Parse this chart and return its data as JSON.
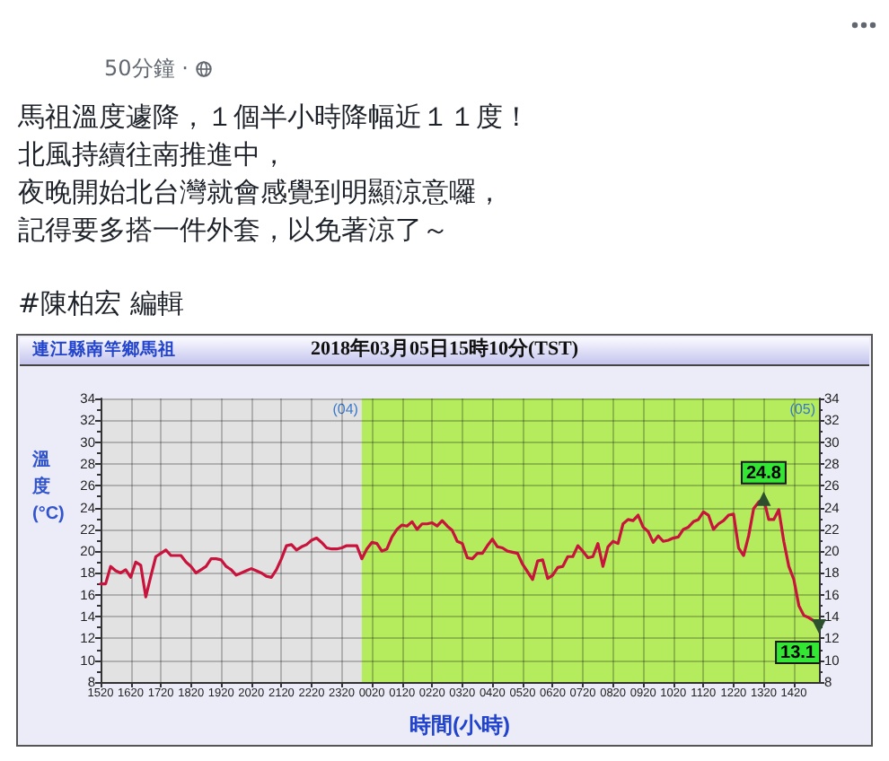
{
  "chart_data": {
    "type": "line",
    "title": "2018年03月05日15時10分(TST)",
    "subtitle": "連江縣南竿鄉馬祖",
    "xlabel": "時間(小時)",
    "ylabel": "溫度(°C)",
    "categories": [
      "1520",
      null,
      null,
      null,
      null,
      null,
      "1620",
      null,
      null,
      null,
      null,
      null,
      "1720",
      null,
      null,
      null,
      null,
      null,
      "1820",
      null,
      null,
      null,
      null,
      null,
      "1920",
      null,
      null,
      null,
      null,
      null,
      "2020",
      null,
      null,
      null,
      null,
      null,
      "2120",
      null,
      null,
      null,
      null,
      null,
      "2220",
      null,
      null,
      null,
      null,
      null,
      "2320",
      null,
      null,
      null,
      null,
      null,
      "0020",
      null,
      null,
      null,
      null,
      null,
      "0120",
      null,
      null,
      null,
      null,
      null,
      "0220",
      null,
      null,
      null,
      null,
      null,
      "0320",
      null,
      null,
      null,
      null,
      null,
      "0420",
      null,
      null,
      null,
      null,
      null,
      "0520",
      null,
      null,
      null,
      null,
      null,
      "0620",
      null,
      null,
      null,
      null,
      null,
      "0720",
      null,
      null,
      null,
      null,
      null,
      "0820",
      null,
      null,
      null,
      null,
      null,
      "0920",
      null,
      null,
      null,
      null,
      null,
      "1020",
      null,
      null,
      null,
      null,
      null,
      "1120",
      null,
      null,
      null,
      null,
      null,
      "1220",
      null,
      null,
      null,
      null,
      null,
      "1320",
      null,
      null,
      null,
      null,
      null,
      "1420",
      null,
      null,
      null,
      null,
      null
    ],
    "values": [
      17.0,
      17.0,
      18.6,
      18.2,
      18.0,
      18.3,
      17.6,
      19.0,
      18.7,
      15.8,
      17.7,
      19.5,
      19.8,
      20.1,
      19.6,
      19.6,
      19.6,
      19.0,
      18.6,
      18.0,
      18.3,
      18.6,
      19.3,
      19.3,
      19.2,
      18.6,
      18.3,
      17.8,
      18.0,
      18.2,
      18.4,
      18.2,
      18.0,
      17.7,
      17.6,
      18.3,
      19.3,
      20.5,
      20.6,
      20.1,
      20.4,
      20.6,
      21.0,
      21.2,
      20.8,
      20.3,
      20.2,
      20.2,
      20.3,
      20.5,
      20.5,
      20.5,
      19.3,
      20.2,
      20.8,
      20.7,
      20.0,
      20.2,
      21.3,
      22.0,
      22.4,
      22.3,
      22.7,
      22.0,
      22.5,
      22.5,
      22.6,
      22.3,
      22.8,
      22.3,
      21.9,
      20.9,
      20.7,
      19.4,
      19.3,
      19.8,
      19.8,
      20.5,
      21.1,
      20.4,
      20.3,
      20.0,
      19.9,
      19.8,
      18.8,
      18.1,
      17.4,
      19.1,
      19.2,
      17.5,
      17.8,
      18.5,
      18.6,
      19.5,
      19.5,
      20.5,
      20.0,
      19.4,
      19.5,
      20.7,
      18.6,
      20.4,
      20.9,
      20.7,
      22.5,
      22.9,
      22.8,
      23.3,
      22.2,
      21.8,
      20.8,
      21.4,
      20.9,
      21.0,
      21.2,
      21.3,
      22.0,
      22.2,
      22.7,
      22.9,
      23.6,
      23.3,
      22.0,
      22.5,
      22.8,
      23.3,
      23.4,
      20.3,
      19.6,
      21.4,
      23.9,
      24.5,
      24.8,
      22.9,
      22.9,
      23.8,
      20.9,
      18.6,
      17.4,
      15.0,
      14.1,
      13.9,
      13.6,
      13.1
    ],
    "value_labels": [
      null,
      null,
      null,
      null,
      null,
      null,
      null,
      null,
      null,
      null,
      null,
      null,
      null,
      null,
      null,
      null,
      null,
      null,
      null,
      null,
      null,
      null,
      null,
      null,
      null,
      null,
      null,
      null,
      null,
      null,
      null,
      null,
      null,
      null,
      null,
      null,
      null,
      null,
      null,
      null,
      null,
      null,
      null,
      null,
      null,
      null,
      null,
      null,
      null,
      null,
      null,
      null,
      null,
      null,
      null,
      null,
      null,
      null,
      null,
      null,
      null,
      null,
      null,
      null,
      null,
      null,
      null,
      null,
      null,
      null,
      null,
      null,
      null,
      null,
      null,
      null,
      null,
      null,
      null,
      null,
      null,
      null,
      null,
      null,
      null,
      null,
      null,
      null,
      null,
      null,
      null,
      null,
      null,
      null,
      null,
      null,
      null,
      null,
      null,
      null,
      null,
      null,
      null,
      null,
      null,
      null,
      null,
      null,
      null,
      null,
      null,
      null,
      null,
      null,
      null,
      null,
      null,
      null,
      null,
      null,
      null,
      null,
      null,
      null,
      null,
      null,
      null,
      null,
      null,
      null,
      null,
      null,
      "24.8",
      null,
      null,
      null,
      null,
      null,
      null,
      null,
      null,
      null,
      null,
      "13.1"
    ],
    "color": "#c8143c",
    "ylim": [
      8,
      34
    ],
    "yticks": [
      8,
      10,
      12,
      14,
      16,
      18,
      20,
      22,
      24,
      26,
      28,
      30,
      32,
      34
    ],
    "y2lim": [
      8,
      34
    ],
    "y2ticks": [
      8,
      10,
      12,
      14,
      16,
      18,
      20,
      22,
      24,
      26,
      28,
      30,
      32,
      34
    ],
    "grid": true,
    "annotations": [
      "50分鐘 ·",
      "馬祖溫度遽降，１個半小時降幅近１１度！",
      "北風持續往南推進中，",
      "夜晚開始北台灣就會感覺到明顯涼意囉，",
      "記得要多搭一件外套，以免著涼了～",
      "#陳柏宏 編輯",
      "(04)",
      "(05)"
    ]
  }
}
